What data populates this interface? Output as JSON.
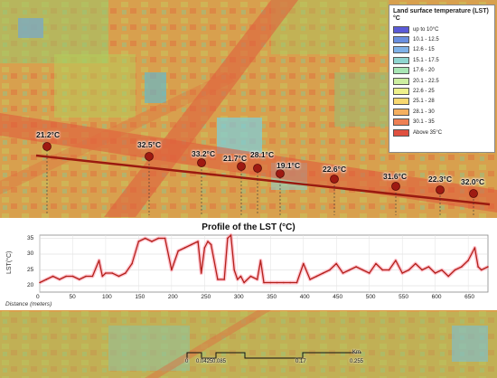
{
  "legend": {
    "title": "Land surface temperature (LST) °C",
    "items": [
      {
        "label": "up to 10°C",
        "color": "#5b5bd8"
      },
      {
        "label": "10.1 - 12.5",
        "color": "#6a8fe0"
      },
      {
        "label": "12.6 - 15",
        "color": "#7fb2e8"
      },
      {
        "label": "15.1 - 17.5",
        "color": "#8fd6d0"
      },
      {
        "label": "17.6 - 20",
        "color": "#a8e6b4"
      },
      {
        "label": "20.1 - 22.5",
        "color": "#cdeea0"
      },
      {
        "label": "22.6 - 25",
        "color": "#eef08a"
      },
      {
        "label": "25.1 - 28",
        "color": "#f8d870"
      },
      {
        "label": "28.1 - 30",
        "color": "#f5b060"
      },
      {
        "label": "30.1 - 35",
        "color": "#ee8054"
      },
      {
        "label": "Above 35°C",
        "color": "#e0503f"
      }
    ]
  },
  "pins": {
    "p1": "21.2°C",
    "p2": "32.5°C",
    "p3": "33.2°C",
    "p4": "21.7°C",
    "p5": "28.1°C",
    "p6": "19.1°C",
    "p7": "22.6°C",
    "p8": "31.6°C",
    "p9": "22.3°C",
    "p10": "32.0°C"
  },
  "chart_data": {
    "type": "line",
    "title": "Profile of the LST (°C)",
    "ylabel": "LST(°C)",
    "xlabel": "Distance (meters)",
    "xlim": [
      0,
      680
    ],
    "ylim": [
      18,
      36
    ],
    "xticks": [
      "0",
      "50",
      "100",
      "150",
      "200",
      "250",
      "300",
      "350",
      "400",
      "450",
      "500",
      "550",
      "600",
      "650"
    ],
    "yticks": [
      "35",
      "30",
      "25",
      "20"
    ],
    "x": [
      0,
      10,
      20,
      30,
      40,
      50,
      60,
      70,
      80,
      90,
      95,
      100,
      110,
      120,
      130,
      140,
      150,
      160,
      170,
      180,
      190,
      200,
      210,
      220,
      230,
      240,
      245,
      250,
      255,
      260,
      270,
      280,
      285,
      290,
      295,
      300,
      305,
      310,
      320,
      330,
      335,
      340,
      350,
      360,
      370,
      380,
      390,
      400,
      410,
      420,
      430,
      440,
      450,
      460,
      470,
      480,
      490,
      500,
      510,
      520,
      530,
      540,
      550,
      560,
      570,
      580,
      590,
      600,
      610,
      620,
      630,
      640,
      650,
      660,
      665,
      670,
      680
    ],
    "values": [
      21,
      22,
      23,
      22,
      23,
      23,
      22,
      23,
      23,
      28,
      23,
      24,
      24,
      23,
      24,
      27,
      34,
      35,
      34,
      35,
      35,
      25,
      31,
      32,
      33,
      34,
      24,
      32,
      34,
      33,
      22,
      22,
      35,
      36,
      25,
      22,
      23,
      21,
      23,
      22,
      28,
      21,
      21,
      21,
      21,
      21,
      21,
      27,
      22,
      23,
      24,
      25,
      27,
      24,
      25,
      26,
      25,
      24,
      27,
      25,
      25,
      28,
      24,
      25,
      27,
      25,
      26,
      24,
      25,
      23,
      25,
      26,
      28,
      32,
      26,
      25,
      26
    ],
    "grid": true
  },
  "scalebar": {
    "labels": [
      "0",
      "0.0425",
      "0.085",
      "0.17",
      "0.255"
    ],
    "unit": "Km"
  },
  "colors": {
    "profile_line": "#b3201a",
    "profile_halo": "#ff9aaa",
    "transect": "#9a1a10",
    "pin": "#9e1a12"
  }
}
